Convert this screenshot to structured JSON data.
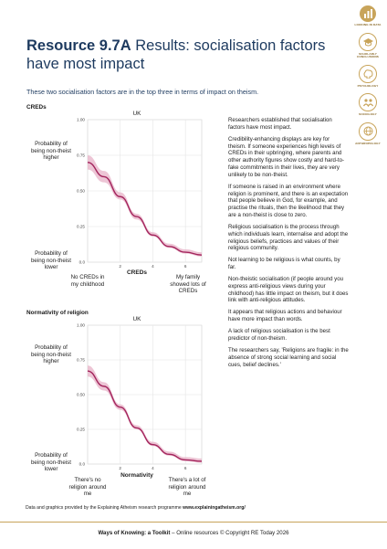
{
  "title_bold": "Resource 9.7A",
  "title_rest": " Results: socialisation factors have most impact",
  "intro": "These two socialisation factors are in the top three in terms of impact on theism.",
  "sidebar": [
    {
      "label": "LOOKING IN DATA",
      "icon": "chart-icon",
      "active": true
    },
    {
      "label": "SCHOLARLY CONCLUSIONS",
      "icon": "scholar-icon",
      "active": false
    },
    {
      "label": "PSYCHOLOGY",
      "icon": "brain-icon",
      "active": false
    },
    {
      "label": "SOCIOLOGY",
      "icon": "people-icon",
      "active": false
    },
    {
      "label": "ANTHROPOLOGY",
      "icon": "globe-icon",
      "active": false
    }
  ],
  "charts": [
    {
      "heading": "CREDs",
      "region": "UK",
      "y_top_label": "Probability of being non-theist higher",
      "y_bottom_label": "Probability of being non-theist lower",
      "x_left_label": "No CREDs in my childhood",
      "x_right_label": "My family showed lots of CREDs",
      "x_title": "CREDs"
    },
    {
      "heading": "Normativity of religion",
      "region": "UK",
      "y_top_label": "Probability of being non-theist higher",
      "y_bottom_label": "Probability of being non-theist lower",
      "x_left_label": "There's no religion around me",
      "x_right_label": "There's a lot of religion around me",
      "x_title": "Normativity"
    }
  ],
  "chart_data": [
    {
      "type": "line",
      "title": "UK",
      "xlabel": "CREDs",
      "ylabel": "",
      "x_ticks": [
        "2",
        "4",
        "6"
      ],
      "y_ticks": [
        "0.0",
        "0.25",
        "0.50",
        "0.75",
        "1.00"
      ],
      "xlim": [
        0,
        7
      ],
      "ylim": [
        0,
        1
      ],
      "grid": true,
      "colors": {
        "line": "#a3245c",
        "band": "#e8b6ca"
      },
      "series": [
        {
          "x": [
            0,
            1,
            2,
            3,
            4,
            5,
            6,
            7
          ],
          "y": [
            0.7,
            0.6,
            0.46,
            0.32,
            0.19,
            0.11,
            0.07,
            0.05
          ],
          "lower": [
            0.65,
            0.56,
            0.44,
            0.3,
            0.18,
            0.1,
            0.06,
            0.04
          ],
          "upper": [
            0.75,
            0.64,
            0.49,
            0.34,
            0.21,
            0.13,
            0.09,
            0.07
          ]
        }
      ]
    },
    {
      "type": "line",
      "title": "UK",
      "xlabel": "Normativity",
      "ylabel": "",
      "x_ticks": [
        "2",
        "4",
        "6"
      ],
      "y_ticks": [
        "0.0",
        "0.25",
        "0.50",
        "0.75",
        "1.00"
      ],
      "xlim": [
        0,
        7
      ],
      "ylim": [
        0,
        1
      ],
      "grid": true,
      "colors": {
        "line": "#a3245c",
        "band": "#e8b6ca"
      },
      "series": [
        {
          "x": [
            0,
            1,
            2,
            3,
            4,
            5,
            6,
            7
          ],
          "y": [
            0.67,
            0.56,
            0.41,
            0.26,
            0.14,
            0.07,
            0.03,
            0.02
          ],
          "lower": [
            0.63,
            0.53,
            0.39,
            0.25,
            0.13,
            0.06,
            0.02,
            0.01
          ],
          "upper": [
            0.71,
            0.59,
            0.43,
            0.28,
            0.16,
            0.09,
            0.05,
            0.04
          ]
        }
      ]
    }
  ],
  "paragraphs": [
    "Researchers established that socialisation factors have most impact.",
    "Credibility-enhancing displays are key for theism. If someone experiences high levels of CREDs in their upbringing, where parents and other authority figures show costly and hard-to-fake commitments in their lives, they are very unlikely to be non-theist.",
    "If someone is raised in an environment where religion is prominent, and there is an expectation that people believe in God, for example, and practise the rituals, then the likelihood that they are a non-theist is close to zero.",
    "Religious socialisation is the process through which individuals learn, internalise and adopt the religious beliefs, practices and values of their religious community.",
    "Not learning to be religious is what counts, by far.",
    "Non-theistic socialisation (if people around you express anti-religious views during your childhood) has little impact on theism, but it does link with anti-religious attitudes.",
    "It appears that religious actions and behaviour have more impact than words.",
    "A lack of religious socialisation is the best predictor of non-theism.",
    "The researchers say, 'Religions are fragile: in the absence of strong social learning and social cues, belief declines.'"
  ],
  "footnote_text": "Data and graphics provided by the Explaining Atheism research programme ",
  "footnote_link": "www.explainingatheism.org/",
  "footer_bold": "Ways of Knowing: a Toolkit",
  "footer_rest": " – Online resources © Copyright RE Today 2026"
}
